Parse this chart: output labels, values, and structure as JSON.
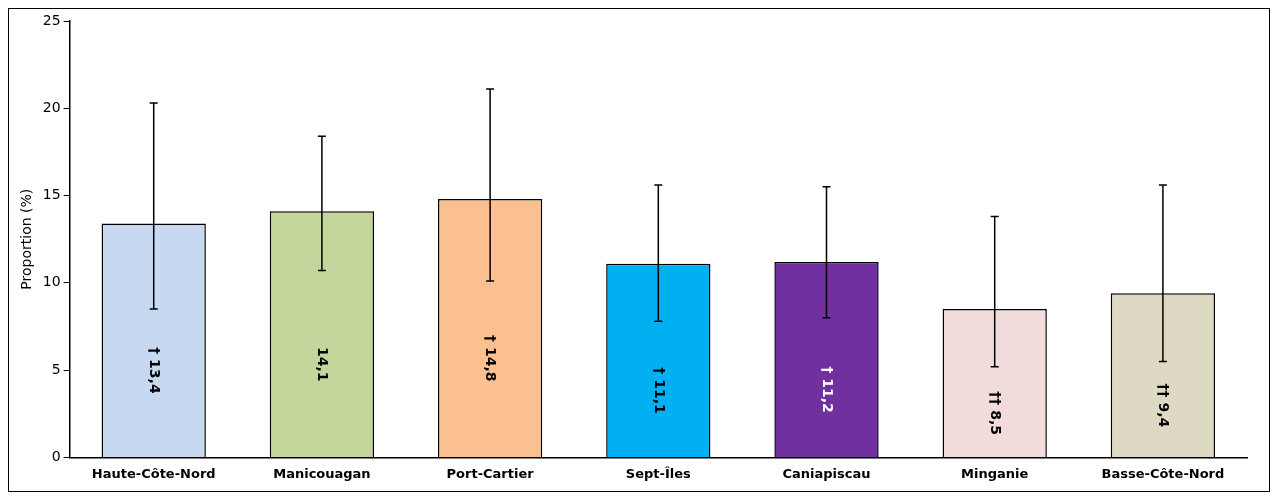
{
  "chart_data": {
    "type": "bar",
    "ylabel": "Proportion (%)",
    "categories": [
      "Haute-Côte-Nord",
      "Manicouagan",
      "Port-Cartier",
      "Sept-Îles",
      "Caniapiscau",
      "Minganie",
      "Basse-Côte-Nord"
    ],
    "values": [
      13.4,
      14.1,
      14.8,
      11.1,
      11.2,
      8.5,
      9.4
    ],
    "colors": [
      "#c6d9f1",
      "#c3d69b",
      "#fac090",
      "#00b0f0",
      "#7030a0",
      "#f2dcdb",
      "#ddd9c3"
    ],
    "errors": [
      [
        8.5,
        20.3
      ],
      [
        10.7,
        18.4
      ],
      [
        10.1,
        21.1
      ],
      [
        7.8,
        15.6
      ],
      [
        8.0,
        15.5
      ],
      [
        5.2,
        13.8
      ],
      [
        5.5,
        15.6
      ]
    ],
    "value_labels": [
      "† 13,4",
      "14,1",
      "† 14,8",
      "† 11,1",
      "† 11,2",
      "†† 8,5",
      "†† 9,4"
    ],
    "ylim": [
      0,
      25
    ],
    "yticks": [
      0,
      5,
      10,
      15,
      20,
      25
    ],
    "grid": false,
    "legend": false
  }
}
